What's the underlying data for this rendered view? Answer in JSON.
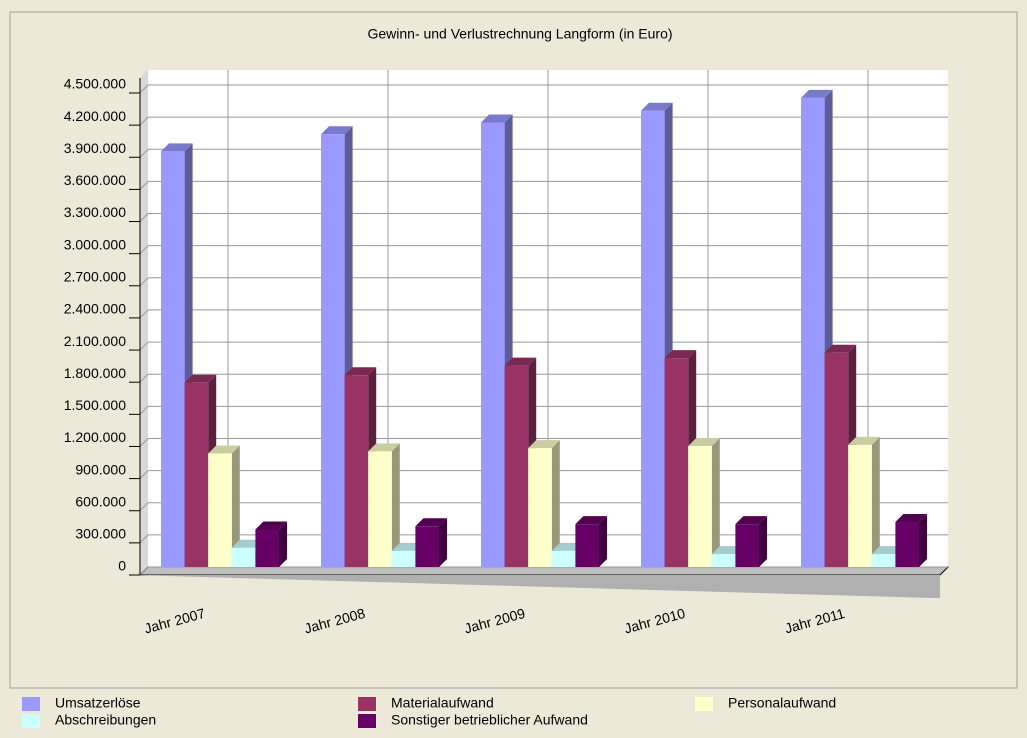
{
  "chart_data": {
    "type": "bar3d",
    "title": "Gewinn- und Verlustrechnung Langform (in Euro)",
    "categories": [
      "Jahr 2007",
      "Jahr 2008",
      "Jahr 2009",
      "Jahr 2010",
      "Jahr 2011"
    ],
    "series": [
      {
        "name": "Umsatzerlöse",
        "color": "#9999ff",
        "values": [
          3880000,
          4040000,
          4150000,
          4260000,
          4380000
        ]
      },
      {
        "name": "Materialaufwand",
        "color": "#993366",
        "values": [
          1720000,
          1790000,
          1880000,
          1950000,
          2000000
        ]
      },
      {
        "name": "Personalaufwand",
        "color": "#ffffcc",
        "values": [
          1060000,
          1080000,
          1110000,
          1130000,
          1140000
        ]
      },
      {
        "name": "Abschreibungen",
        "color": "#ccffff",
        "values": [
          180000,
          150000,
          150000,
          120000,
          120000
        ]
      },
      {
        "name": "Sonstiger betrieblicher Aufwand",
        "color": "#660066",
        "values": [
          350000,
          380000,
          400000,
          400000,
          420000
        ]
      }
    ],
    "ylim": [
      0,
      4500000
    ],
    "yticks": [
      0,
      {
        "value": 300000,
        "label": "300.000"
      },
      {
        "value": 600000,
        "label": "600.000"
      },
      {
        "value": 900000,
        "label": "900.000"
      },
      {
        "value": 1200000,
        "label": "1.200.000"
      },
      {
        "value": 1500000,
        "label": "1.500.000"
      },
      {
        "value": 1800000,
        "label": "1.800.000"
      },
      {
        "value": 2100000,
        "label": "2.100.000"
      },
      {
        "value": 2400000,
        "label": "2.400.000"
      },
      {
        "value": 2700000,
        "label": "2.700.000"
      },
      {
        "value": 3000000,
        "label": "3.000.000"
      },
      {
        "value": 3300000,
        "label": "3.300.000"
      },
      {
        "value": 3600000,
        "label": "3.600.000"
      },
      {
        "value": 3900000,
        "label": "3.900.000"
      },
      {
        "value": 4200000,
        "label": "4.200.000"
      },
      {
        "value": 4500000,
        "label": "4.500.000"
      }
    ],
    "grid": true
  }
}
